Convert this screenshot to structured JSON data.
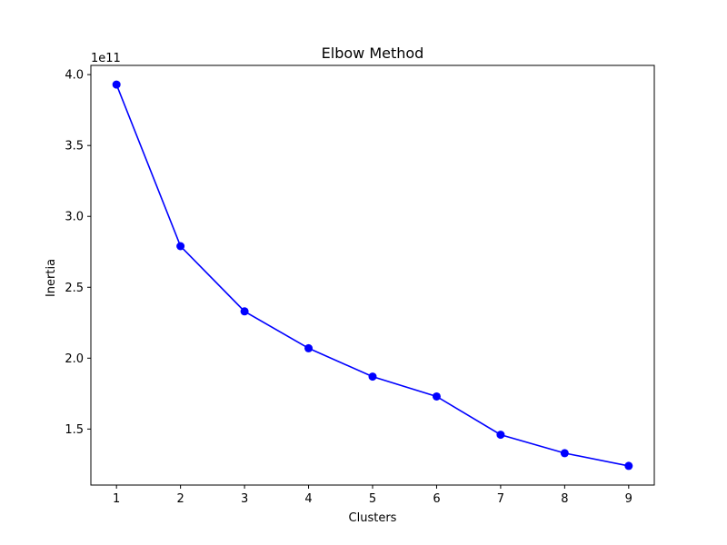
{
  "chart_data": {
    "type": "line",
    "title": "Elbow Method",
    "xlabel": "Clusters",
    "ylabel": "Inertia",
    "y_offset_label": "1e11",
    "x": [
      1,
      2,
      3,
      4,
      5,
      6,
      7,
      8,
      9
    ],
    "series": [
      {
        "values": [
          393000000000,
          279000000000,
          233000000000,
          207000000000,
          187000000000,
          173000000000,
          146000000000,
          133000000000,
          124000000000
        ],
        "color": "#0000ff",
        "marker": "circle"
      }
    ],
    "xticks": [
      1,
      2,
      3,
      4,
      5,
      6,
      7,
      8,
      9
    ],
    "xtick_labels": [
      "1",
      "2",
      "3",
      "4",
      "5",
      "6",
      "7",
      "8",
      "9"
    ],
    "yticks": [
      150000000000,
      200000000000,
      250000000000,
      300000000000,
      350000000000,
      400000000000
    ],
    "ytick_labels": [
      "1.5",
      "2.0",
      "2.5",
      "3.0",
      "3.5",
      "4.0"
    ],
    "xlim": [
      0.6,
      9.4
    ],
    "ylim": [
      110500000000,
      406500000000
    ],
    "grid": false,
    "legend": "none"
  }
}
